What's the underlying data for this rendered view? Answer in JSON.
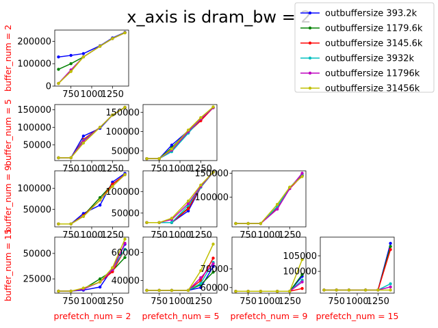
{
  "figure": {
    "title": "x_axis is dram_bw = 2"
  },
  "chart_data": {
    "type": "line",
    "x": [
      600,
      750,
      900,
      1100,
      1250,
      1400
    ],
    "xlim": [
      555,
      1445
    ],
    "xticks": [
      750,
      1000,
      1250
    ],
    "xtick_labels": [
      "750",
      "1000",
      "1250"
    ],
    "row_labels": [
      "buffer_num = 2",
      "buffer_num = 5",
      "buffer_num = 9",
      "buffer_num = 15"
    ],
    "col_labels": [
      "prefetch_num = 2",
      "prefetch_num = 5",
      "prefetch_num = 9",
      "prefetch_num = 15"
    ],
    "legend": {
      "placement": "top-right"
    },
    "series_meta": [
      {
        "name": "outbuffersize 393.2k",
        "color": "#0000ff"
      },
      {
        "name": "outbuffersize 1179.6k",
        "color": "#008000"
      },
      {
        "name": "outbuffersize 3145.6k",
        "color": "#ff0000"
      },
      {
        "name": "outbuffersize 3932k",
        "color": "#00bfbf"
      },
      {
        "name": "outbuffersize 11796k",
        "color": "#bf00bf"
      },
      {
        "name": "outbuffersize 31456k",
        "color": "#bfbf00"
      }
    ],
    "panels": [
      {
        "row": 0,
        "col": 0,
        "ylim": [
          0,
          250000
        ],
        "yticks": [
          0,
          100000,
          200000
        ],
        "ytick_labels": [
          "0",
          "100000",
          "200000"
        ],
        "series": [
          [
            130000,
            137000,
            145000,
            180000,
            215000,
            240000
          ],
          [
            75000,
            100000,
            130000,
            178000,
            212000,
            238000
          ],
          [
            12000,
            68000,
            130000,
            178000,
            212000,
            238000
          ],
          [
            12000,
            70000,
            130000,
            178000,
            212000,
            238000
          ],
          [
            12000,
            72000,
            130000,
            178000,
            212000,
            238000
          ],
          [
            12000,
            65000,
            130000,
            178000,
            212000,
            238000
          ]
        ]
      },
      {
        "row": 1,
        "col": 0,
        "ylim": [
          5000,
          165000
        ],
        "yticks": [
          50000,
          100000,
          150000
        ],
        "ytick_labels": [
          "50000",
          "100000",
          "150000"
        ],
        "series": [
          [
            13000,
            13000,
            75000,
            97000,
            135000,
            157000
          ],
          [
            13000,
            13000,
            65000,
            100000,
            135000,
            157000
          ],
          [
            13000,
            13000,
            65000,
            100000,
            135000,
            157000
          ],
          [
            13000,
            13000,
            62000,
            100000,
            135000,
            157000
          ],
          [
            13000,
            13000,
            60000,
            100000,
            135000,
            157000
          ],
          [
            13000,
            13000,
            55000,
            100000,
            135000,
            157000
          ]
        ]
      },
      {
        "row": 1,
        "col": 1,
        "ylim": [
          25000,
          170000
        ],
        "yticks": [
          50000,
          100000,
          150000
        ],
        "ytick_labels": [
          "50000",
          "100000",
          "150000"
        ],
        "series": [
          [
            30000,
            30000,
            65000,
            102000,
            130000,
            162000
          ],
          [
            30000,
            30000,
            58000,
            102000,
            130000,
            162000
          ],
          [
            30000,
            30000,
            52000,
            98000,
            128000,
            162000
          ],
          [
            30000,
            30000,
            48000,
            96000,
            133000,
            162000
          ],
          [
            30000,
            30000,
            52000,
            100000,
            133000,
            162000
          ],
          [
            30000,
            30000,
            55000,
            104000,
            136000,
            164000
          ]
        ]
      },
      {
        "row": 2,
        "col": 0,
        "ylim": [
          8000,
          142000
        ],
        "yticks": [
          50000,
          100000
        ],
        "ytick_labels": [
          "50000",
          "100000"
        ],
        "series": [
          [
            15000,
            15000,
            40000,
            60000,
            115000,
            136000
          ],
          [
            15000,
            15000,
            35000,
            78000,
            110000,
            133000
          ],
          [
            15000,
            15000,
            35000,
            72000,
            110000,
            133000
          ],
          [
            15000,
            15000,
            33000,
            72000,
            105000,
            133000
          ],
          [
            15000,
            15000,
            33000,
            72000,
            105000,
            133000
          ],
          [
            15000,
            15000,
            33000,
            72000,
            105000,
            133000
          ]
        ]
      },
      {
        "row": 2,
        "col": 1,
        "ylim": [
          18000,
          148000
        ],
        "yticks": [
          50000,
          100000
        ],
        "ytick_labels": [
          "50000",
          "100000"
        ],
        "series": [
          [
            28000,
            28000,
            28000,
            55000,
            110000,
            145000
          ],
          [
            28000,
            28000,
            28000,
            62000,
            110000,
            145000
          ],
          [
            28000,
            28000,
            28000,
            60000,
            110000,
            145000
          ],
          [
            28000,
            28000,
            28000,
            68000,
            110000,
            145000
          ],
          [
            28000,
            28000,
            35000,
            72000,
            112000,
            145000
          ],
          [
            28000,
            28000,
            38000,
            78000,
            115000,
            145000
          ]
        ]
      },
      {
        "row": 2,
        "col": 2,
        "ylim": [
          38000,
          155000
        ],
        "yticks": [
          100000,
          150000
        ],
        "ytick_labels": [
          "100000",
          "150000"
        ],
        "series": [
          [
            45000,
            45000,
            45000,
            80000,
            118000,
            145000
          ],
          [
            45000,
            45000,
            45000,
            80000,
            120000,
            145000
          ],
          [
            45000,
            45000,
            45000,
            78000,
            118000,
            145000
          ],
          [
            45000,
            45000,
            45000,
            80000,
            120000,
            148000
          ],
          [
            45000,
            45000,
            45000,
            75000,
            118000,
            150000
          ],
          [
            45000,
            45000,
            45000,
            85000,
            121000,
            143000
          ]
        ]
      },
      {
        "row": 3,
        "col": 0,
        "ylim": [
          11000,
          66000
        ],
        "yticks": [
          25000,
          50000
        ],
        "ytick_labels": [
          "25000",
          "50000"
        ],
        "series": [
          [
            13000,
            13000,
            14000,
            17000,
            35000,
            59000
          ],
          [
            13000,
            13000,
            15000,
            25000,
            33000,
            46000
          ],
          [
            13000,
            13000,
            15000,
            22000,
            32000,
            54000
          ],
          [
            13000,
            13000,
            15000,
            22000,
            35000,
            54000
          ],
          [
            13000,
            13000,
            15000,
            22000,
            34000,
            60000
          ],
          [
            13000,
            13000,
            16000,
            22000,
            36000,
            64000
          ]
        ]
      },
      {
        "row": 3,
        "col": 1,
        "ylim": [
          31000,
          71000
        ],
        "yticks": [
          40000,
          60000
        ],
        "ytick_labels": [
          "40000",
          "60000"
        ],
        "series": [
          [
            33000,
            33000,
            33000,
            33000,
            35000,
            50000
          ],
          [
            33000,
            33000,
            33000,
            33000,
            37000,
            46000
          ],
          [
            33000,
            33000,
            33000,
            33000,
            40000,
            56000
          ],
          [
            33000,
            33000,
            33000,
            33000,
            38000,
            53000
          ],
          [
            33000,
            33000,
            33000,
            33000,
            42000,
            52000
          ],
          [
            33000,
            33000,
            33000,
            33000,
            47000,
            66000
          ]
        ]
      },
      {
        "row": 3,
        "col": 2,
        "ylim": [
          57000,
          87000
        ],
        "yticks": [
          60000,
          70000
        ],
        "ytick_labels": [
          "60000",
          "70000"
        ],
        "series": [
          [
            58000,
            58000,
            58000,
            58000,
            58000,
            66000
          ],
          [
            58000,
            58000,
            58000,
            58000,
            58000,
            67000
          ],
          [
            58000,
            58000,
            58000,
            58000,
            58000,
            59500
          ],
          [
            58000,
            58000,
            58000,
            58000,
            58000,
            64000
          ],
          [
            58000,
            58000,
            58000,
            58000,
            58000,
            63000
          ],
          [
            58000,
            58000,
            58000,
            58000,
            58000,
            75000
          ]
        ]
      },
      {
        "row": 3,
        "col": 3,
        "ylim": [
          93000,
          111000
        ],
        "yticks": [
          100000,
          105000
        ],
        "ytick_labels": [
          "100000",
          "105000"
        ],
        "series": [
          [
            94000,
            94000,
            94000,
            94000,
            94000,
            109000
          ],
          [
            94000,
            94000,
            94000,
            94000,
            94000,
            108000
          ],
          [
            94000,
            94000,
            94000,
            94000,
            94000,
            107000
          ],
          [
            94000,
            94000,
            94000,
            94000,
            94000,
            96000
          ],
          [
            94000,
            94000,
            94000,
            94000,
            94000,
            95000
          ],
          [
            94000,
            94000,
            94000,
            94000,
            94000,
            94000
          ]
        ]
      }
    ]
  }
}
